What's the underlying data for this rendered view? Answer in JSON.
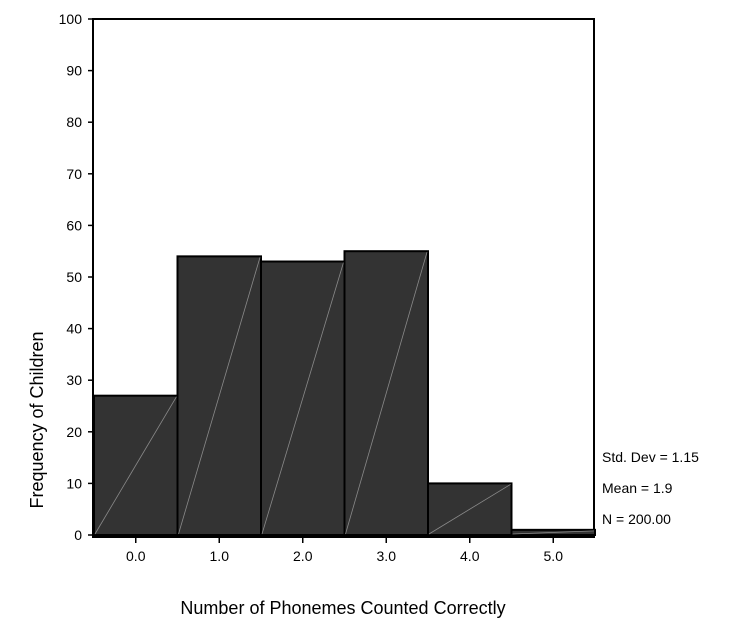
{
  "chart_data": {
    "type": "bar",
    "subtype": "histogram",
    "title": "",
    "xlabel": "Number of  Phonemes Counted Correctly",
    "ylabel": "Frequency of Children",
    "categories": [
      "0.0",
      "1.0",
      "2.0",
      "3.0",
      "4.0",
      "5.0"
    ],
    "values": [
      27,
      54,
      53,
      55,
      10,
      1
    ],
    "ylim": [
      0,
      100
    ],
    "yticks": [
      "0",
      "10",
      "20",
      "30",
      "40",
      "50",
      "60",
      "70",
      "80",
      "90",
      "100"
    ],
    "grid": false,
    "stats": {
      "std_dev": "Std. Dev = 1.15",
      "mean": "Mean = 1.9",
      "n": "N = 200.00"
    },
    "colors": {
      "bar_fill": "#333333",
      "bar_stroke": "#000000",
      "bar_diagonal": "#8a8a8a"
    }
  }
}
